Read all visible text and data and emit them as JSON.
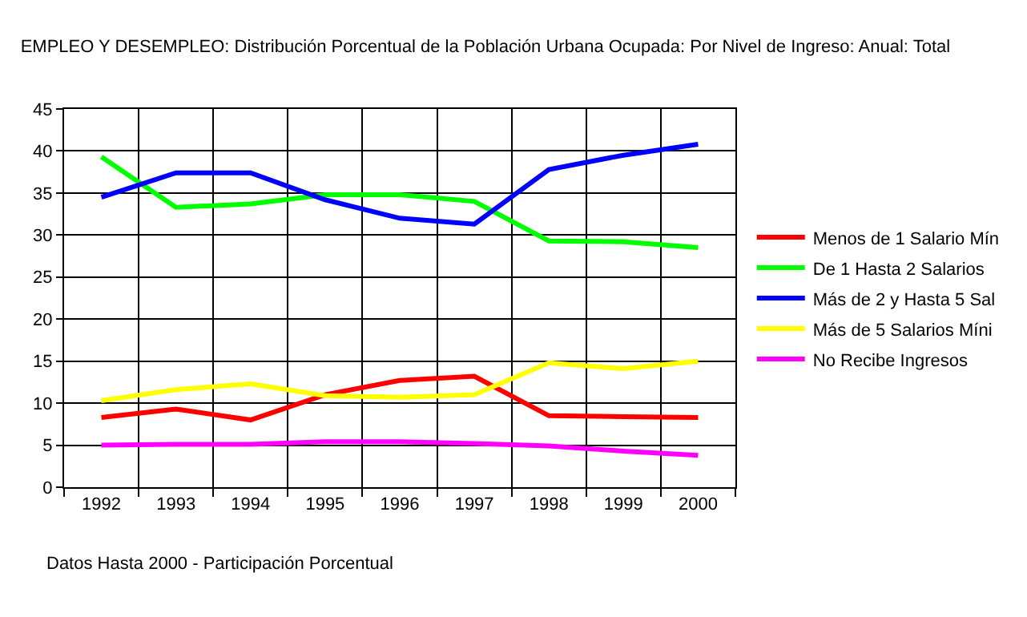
{
  "chart_data": {
    "type": "line",
    "title": "EMPLEO Y DESEMPLEO: Distribución Porcentual de la Población Urbana Ocupada: Por Nivel de Ingreso: Anual: Total",
    "categories": [
      "1992",
      "1993",
      "1994",
      "1995",
      "1996",
      "1997",
      "1998",
      "1999",
      "2000"
    ],
    "series": [
      {
        "name": "Menos de 1 Salario Mín",
        "color": "#ff0000",
        "values": [
          8.3,
          9.3,
          8.0,
          11.0,
          12.7,
          13.2,
          8.5,
          8.4,
          8.3
        ]
      },
      {
        "name": "De 1 Hasta 2 Salarios",
        "color": "#00ff00",
        "values": [
          39.3,
          33.3,
          33.7,
          34.8,
          34.8,
          34.0,
          29.3,
          29.2,
          28.5
        ]
      },
      {
        "name": "Más de 2 y Hasta 5 Sal",
        "color": "#0000ff",
        "values": [
          34.5,
          37.4,
          37.4,
          34.2,
          32.0,
          31.3,
          37.8,
          39.5,
          40.8
        ]
      },
      {
        "name": "Más de 5 Salarios Míni",
        "color": "#ffff00",
        "values": [
          10.3,
          11.6,
          12.3,
          10.9,
          10.7,
          11.0,
          14.8,
          14.1,
          15.0
        ]
      },
      {
        "name": "No Recibe Ingresos",
        "color": "#ff00ff",
        "values": [
          5.0,
          5.1,
          5.1,
          5.4,
          5.4,
          5.2,
          4.9,
          4.3,
          3.8
        ]
      }
    ],
    "ylim": [
      0,
      45
    ],
    "yticks": [
      0,
      5,
      10,
      15,
      20,
      25,
      30,
      35,
      40,
      45
    ],
    "grid": true,
    "legend": "right",
    "marker": "none",
    "line_style": "solid",
    "annotations": [
      "Datos Hasta 2000 - Participación Porcentual"
    ]
  }
}
